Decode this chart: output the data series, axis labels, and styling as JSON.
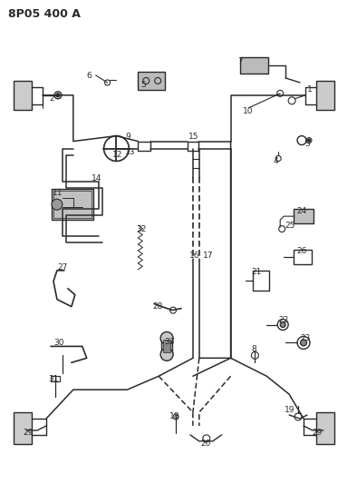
{
  "title": "8P05 400 A",
  "bg_color": "#ffffff",
  "line_color": "#2a2a2a",
  "title_fontsize": 9,
  "label_fontsize": 6.5,
  "fig_width": 3.94,
  "fig_height": 5.33,
  "dpi": 100
}
